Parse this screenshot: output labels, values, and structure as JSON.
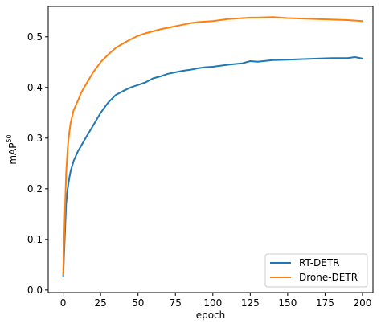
{
  "chart_data": {
    "type": "line",
    "xlabel": "epoch",
    "ylabel": "mAP",
    "ylabel_sup": "50",
    "xlim": [
      -10,
      207
    ],
    "ylim": [
      -0.005,
      0.56
    ],
    "xticks": [
      0,
      25,
      50,
      75,
      100,
      125,
      150,
      175,
      200
    ],
    "yticks": [
      0.0,
      0.1,
      0.2,
      0.3,
      0.4,
      0.5
    ],
    "ytick_labels": [
      "0.0",
      "0.1",
      "0.2",
      "0.3",
      "0.4",
      "0.5"
    ],
    "grid": false,
    "legend_position": "lower-right",
    "series": [
      {
        "name": "RT-DETR",
        "color": "#1f77b4",
        "x": [
          0,
          1,
          2,
          3,
          4,
          5,
          7,
          10,
          12,
          15,
          20,
          25,
          30,
          35,
          40,
          45,
          50,
          55,
          60,
          65,
          70,
          75,
          80,
          85,
          90,
          95,
          100,
          110,
          120,
          125,
          130,
          140,
          150,
          160,
          170,
          180,
          190,
          195,
          200
        ],
        "values": [
          0.025,
          0.1,
          0.17,
          0.2,
          0.22,
          0.235,
          0.255,
          0.275,
          0.285,
          0.3,
          0.325,
          0.35,
          0.37,
          0.385,
          0.393,
          0.4,
          0.405,
          0.41,
          0.418,
          0.422,
          0.427,
          0.43,
          0.433,
          0.435,
          0.438,
          0.44,
          0.441,
          0.445,
          0.448,
          0.452,
          0.451,
          0.454,
          0.455,
          0.456,
          0.457,
          0.458,
          0.458,
          0.46,
          0.457
        ]
      },
      {
        "name": "Drone-DETR",
        "color": "#ff7f0e",
        "x": [
          0,
          1,
          2,
          3,
          4,
          5,
          7,
          10,
          12,
          15,
          20,
          25,
          30,
          35,
          40,
          45,
          50,
          55,
          60,
          65,
          70,
          75,
          80,
          85,
          90,
          95,
          100,
          110,
          120,
          125,
          130,
          140,
          150,
          160,
          170,
          180,
          190,
          195,
          200
        ],
        "values": [
          0.03,
          0.14,
          0.23,
          0.28,
          0.31,
          0.33,
          0.355,
          0.375,
          0.39,
          0.405,
          0.43,
          0.45,
          0.465,
          0.478,
          0.487,
          0.495,
          0.502,
          0.507,
          0.511,
          0.515,
          0.518,
          0.521,
          0.524,
          0.527,
          0.529,
          0.53,
          0.531,
          0.535,
          0.537,
          0.538,
          0.538,
          0.539,
          0.537,
          0.536,
          0.535,
          0.534,
          0.533,
          0.532,
          0.531
        ]
      }
    ]
  }
}
